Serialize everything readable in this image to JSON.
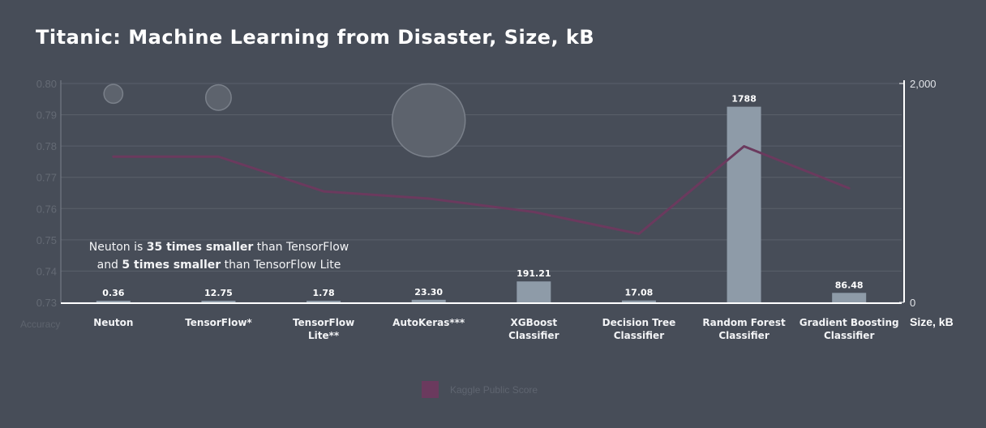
{
  "title": "Titanic: Machine Learning from Disaster, Size, kB",
  "annotation": {
    "l1_a": "Neuton is ",
    "l1_b": "35 times smaller",
    "l1_c": " than TensorFlow",
    "l2_a": "and ",
    "l2_b": "5 times smaller",
    "l2_c": " than TensorFlow Lite"
  },
  "legend": {
    "label": "Kaggle Public Score",
    "color": "#6b3a5e"
  },
  "chart_data": {
    "type": "bar",
    "categories": [
      [
        "Neuton"
      ],
      [
        "TensorFlow*"
      ],
      [
        "TensorFlow",
        "Lite**"
      ],
      [
        "AutoKeras***"
      ],
      [
        "XGBoost",
        "Classifier"
      ],
      [
        "Decision Tree",
        "Classifier"
      ],
      [
        "Random Forest",
        "Classifier"
      ],
      [
        "Gradient Boosting",
        "Classifier"
      ]
    ],
    "series": [
      {
        "type": "bar",
        "axis": "right",
        "values": [
          0.36,
          12.75,
          1.78,
          23.3,
          191.21,
          17.08,
          1788,
          86.48
        ],
        "labels": [
          "0.36",
          "12.75",
          "1.78",
          "23.30",
          "191.21",
          "17.08",
          "1788",
          "86.48"
        ],
        "color": "#8e9ba8"
      },
      {
        "name": "Kaggle Public Score",
        "type": "line",
        "axis": "left",
        "values": [
          0.7766,
          0.7766,
          0.7655,
          0.7632,
          0.7589,
          0.7519,
          0.7799,
          0.7665
        ],
        "color": "#6b3a5e"
      },
      {
        "type": "bubble",
        "axis": "left",
        "points": [
          {
            "category_index": 0,
            "y": 0.7967,
            "size": 12.75
          },
          {
            "category_index": 1,
            "y": 0.7955,
            "size": 23.3
          },
          {
            "category_index": 3,
            "y": 0.7882,
            "size": 191.21
          }
        ],
        "color": "#5d636d"
      }
    ],
    "y_left": {
      "title": "Accuracy",
      "ticks": [
        "0.73",
        "0.74",
        "0.75",
        "0.76",
        "0.77",
        "0.78",
        "0.79",
        "0.80"
      ],
      "ylim": [
        0.73,
        0.8
      ]
    },
    "y_right": {
      "title": "Size, kB",
      "ticks": [
        "0",
        "2,000"
      ],
      "ylim": [
        0,
        2000
      ]
    },
    "grid": true
  }
}
